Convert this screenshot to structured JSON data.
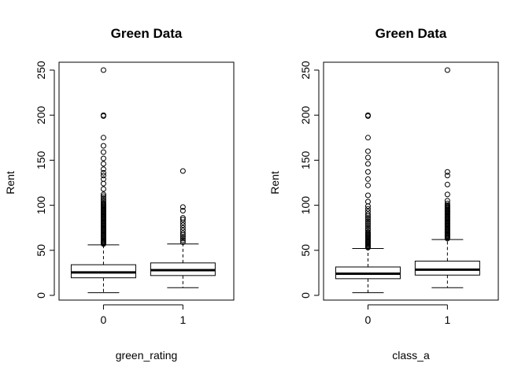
{
  "chart_data": [
    {
      "type": "boxplot",
      "title": "Green Data",
      "xlabel": "green_rating",
      "ylabel": "Rent",
      "ylim": [
        0,
        250
      ],
      "yticks": [
        0,
        50,
        100,
        150,
        200,
        250
      ],
      "grid": false,
      "categories": [
        "0",
        "1"
      ],
      "boxes": [
        {
          "category": "0",
          "whisker_low": 3,
          "q1": 19.5,
          "median": 25.5,
          "q3": 34,
          "whisker_high": 56,
          "outliers": [
            57,
            58,
            59,
            60,
            61,
            62,
            63,
            64,
            65,
            66,
            67,
            68,
            69,
            70,
            71,
            72,
            73,
            74,
            75,
            76,
            77,
            78,
            79,
            80,
            81,
            82,
            83,
            84,
            85,
            86,
            87,
            88,
            89,
            90,
            91,
            92,
            93,
            94,
            95,
            96,
            97,
            98,
            99,
            100,
            101,
            102,
            104,
            106,
            108,
            110,
            112,
            118,
            124,
            129,
            133,
            136,
            140,
            146,
            152,
            159,
            166,
            175,
            199,
            200,
            250
          ]
        },
        {
          "category": "1",
          "whisker_low": 8.5,
          "q1": 22,
          "median": 28,
          "q3": 36,
          "whisker_high": 57,
          "outliers": [
            59,
            61,
            63,
            65,
            67,
            69,
            72,
            75,
            78,
            81,
            84,
            86,
            94,
            98,
            138
          ]
        }
      ]
    },
    {
      "type": "boxplot",
      "title": "Green Data",
      "xlabel": "class_a",
      "ylabel": "Rent",
      "ylim": [
        0,
        250
      ],
      "yticks": [
        0,
        50,
        100,
        150,
        200,
        250
      ],
      "grid": false,
      "categories": [
        "0",
        "1"
      ],
      "boxes": [
        {
          "category": "0",
          "whisker_low": 3,
          "q1": 18.5,
          "median": 24,
          "q3": 31.5,
          "whisker_high": 52,
          "outliers": [
            53,
            54,
            55,
            56,
            57,
            58,
            59,
            60,
            61,
            62,
            63,
            64,
            65,
            66,
            67,
            68,
            69,
            70,
            72,
            74,
            76,
            78,
            80,
            82,
            84,
            86,
            88,
            90,
            93,
            96,
            99,
            104,
            111,
            122,
            129,
            137,
            146,
            153,
            160,
            175,
            199,
            200
          ]
        },
        {
          "category": "1",
          "whisker_low": 8.5,
          "q1": 22.5,
          "median": 28.5,
          "q3": 38,
          "whisker_high": 62,
          "outliers": [
            63,
            64,
            65,
            66,
            67,
            68,
            69,
            70,
            71,
            72,
            73,
            74,
            75,
            76,
            77,
            78,
            79,
            80,
            81,
            82,
            83,
            84,
            85,
            86,
            87,
            88,
            89,
            90,
            91,
            92,
            93,
            94,
            95,
            96,
            97,
            98,
            99,
            100,
            102,
            105,
            112,
            123,
            133,
            137,
            250
          ]
        }
      ]
    }
  ]
}
